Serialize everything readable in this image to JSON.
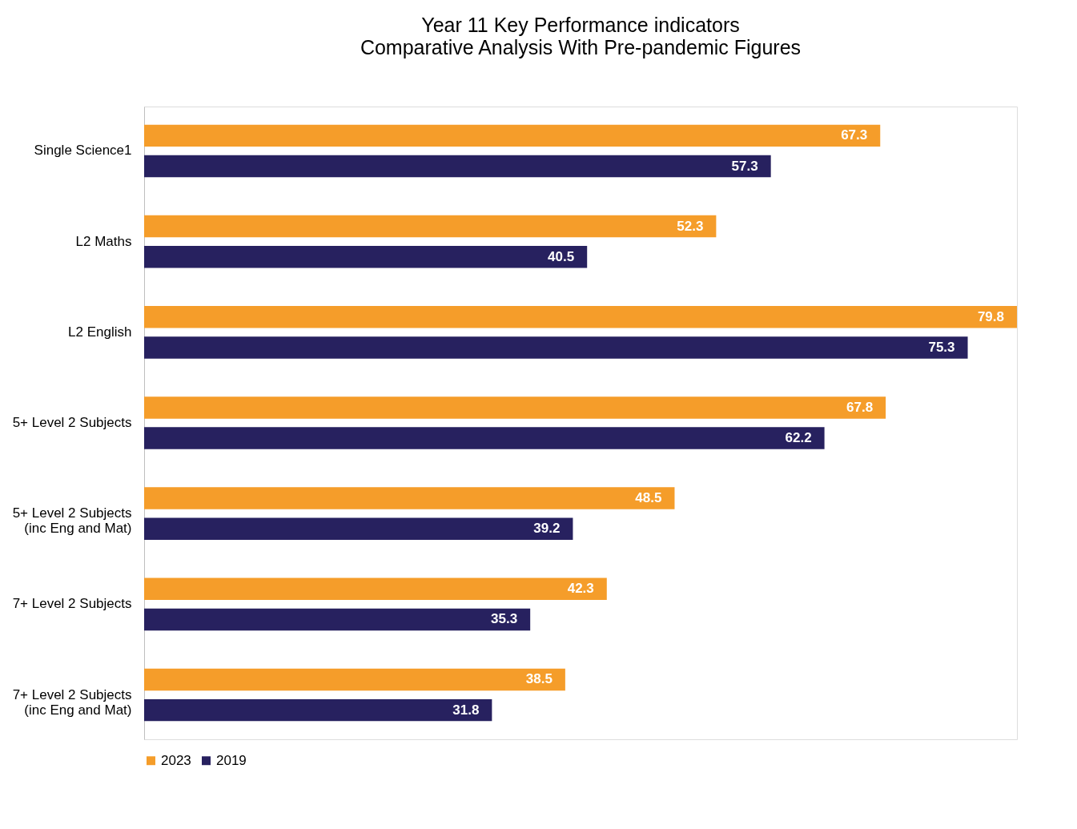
{
  "chart_data": {
    "type": "bar",
    "orientation": "horizontal",
    "title": "Year 11 Key Performance indicators",
    "subtitle": "Comparative Analysis With Pre-pandemic Figures",
    "categories": [
      "Single Science1",
      "L2    Maths",
      "L2  English",
      "5+ Level 2 Subjects",
      "5+ Level 2 Subjects\n(inc Eng and Mat)",
      "7+ Level 2 Subjects",
      "7+ Level 2 Subjects\n(inc Eng and Mat)"
    ],
    "series": [
      {
        "name": "2023",
        "color": "#f59d2a",
        "values": [
          67.3,
          52.3,
          79.8,
          67.8,
          48.5,
          42.3,
          38.5
        ]
      },
      {
        "name": "2019",
        "color": "#27215f",
        "values": [
          57.3,
          40.5,
          75.3,
          62.2,
          39.2,
          35.3,
          31.8
        ]
      }
    ],
    "data_labels": true,
    "tick_labels": "y",
    "grid": false,
    "legend": "bottom"
  }
}
